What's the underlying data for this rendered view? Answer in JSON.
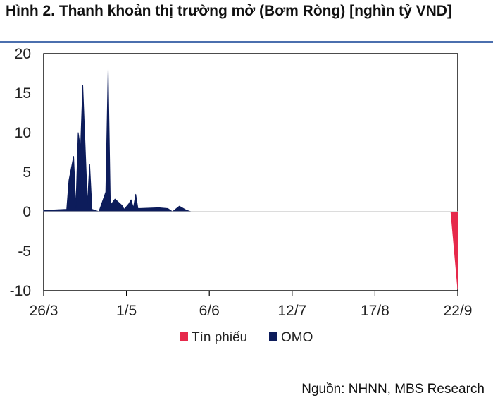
{
  "figure": {
    "title": "Hình 2. Thanh khoản thị trường mở (Bơm Ròng) [nghìn tỷ VND]",
    "source": "Nguồn: NHNN, MBS Research"
  },
  "chart_data": {
    "type": "area",
    "title": "Hình 2. Thanh khoản thị trường mở (Bơm Ròng) [nghìn tỷ VND]",
    "xlabel": "",
    "ylabel": "",
    "ylim": [
      -10,
      20
    ],
    "yticks": [
      20,
      15,
      10,
      5,
      0,
      -5,
      -10
    ],
    "x_tick_labels": [
      "26/3",
      "1/5",
      "6/6",
      "12/7",
      "17/8",
      "22/9"
    ],
    "grid": false,
    "legend_position": "bottom",
    "colors": {
      "Tín phiếu": "#e6294b",
      "OMO": "#0d1c5b"
    },
    "series": [
      {
        "name": "OMO",
        "color": "#0d1c5b",
        "points": [
          [
            "26/3",
            0.2
          ],
          [
            "29/3",
            0.2
          ],
          [
            "5/4",
            0.3
          ],
          [
            "6/4",
            4.0
          ],
          [
            "8/4",
            7.0
          ],
          [
            "9/4",
            0.5
          ],
          [
            "10/4",
            10.0
          ],
          [
            "11/4",
            8.0
          ],
          [
            "12/4",
            16.0
          ],
          [
            "14/4",
            1.0
          ],
          [
            "15/4",
            6.0
          ],
          [
            "16/4",
            0.3
          ],
          [
            "19/4",
            0.0
          ],
          [
            "22/4",
            2.5
          ],
          [
            "23/4",
            18.0
          ],
          [
            "24/4",
            0.8
          ],
          [
            "26/4",
            1.6
          ],
          [
            "29/4",
            0.8
          ],
          [
            "30/4",
            0.3
          ],
          [
            "2/5",
            1.0
          ],
          [
            "3/5",
            1.5
          ],
          [
            "4/5",
            0.5
          ],
          [
            "5/5",
            2.2
          ],
          [
            "6/5",
            0.4
          ],
          [
            "15/5",
            0.5
          ],
          [
            "19/5",
            0.4
          ],
          [
            "21/5",
            0.0
          ],
          [
            "24/5",
            0.7
          ],
          [
            "27/5",
            0.2
          ],
          [
            "29/5",
            0.0
          ]
        ]
      },
      {
        "name": "Tín phiếu",
        "color": "#e6294b",
        "points": [
          [
            "19/9",
            0.0
          ],
          [
            "22/9",
            -9.8
          ]
        ]
      }
    ]
  }
}
